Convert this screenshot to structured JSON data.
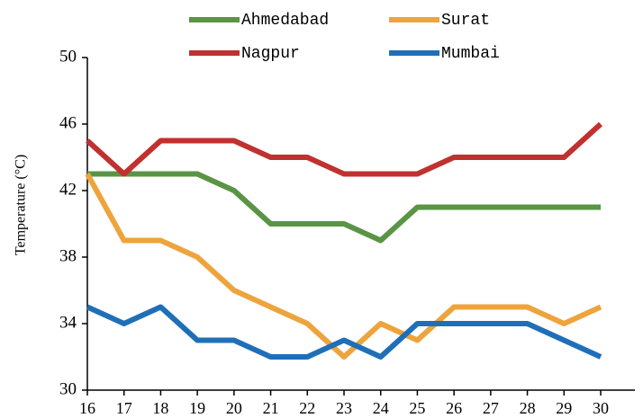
{
  "chart_data": {
    "type": "line",
    "y_label": "Temperature (°C)",
    "categories": [
      "16",
      "17",
      "18",
      "19",
      "20",
      "21",
      "22",
      "23",
      "24",
      "25",
      "26",
      "27",
      "28",
      "29",
      "30"
    ],
    "series": [
      {
        "name": "Ahmedabad",
        "color": "#5a9445",
        "values": [
          43,
          43,
          43,
          43,
          42,
          40,
          40,
          40,
          39,
          41,
          41,
          41,
          41,
          41,
          41
        ]
      },
      {
        "name": "Surat",
        "color": "#eea43c",
        "values": [
          43,
          39,
          39,
          38,
          36,
          35,
          34,
          32,
          34,
          33,
          35,
          35,
          35,
          34,
          35
        ]
      },
      {
        "name": "Nagpur",
        "color": "#c0312f",
        "values": [
          45,
          43,
          45,
          45,
          45,
          44,
          44,
          43,
          43,
          43,
          44,
          44,
          44,
          44,
          46
        ]
      },
      {
        "name": "Mumbai",
        "color": "#1f6fb8",
        "values": [
          35,
          34,
          35,
          33,
          33,
          32,
          32,
          33,
          32,
          34,
          34,
          34,
          34,
          33,
          32
        ]
      }
    ],
    "ylim": [
      30,
      50
    ],
    "yticks": [
      30,
      34,
      38,
      42,
      46,
      50
    ]
  }
}
